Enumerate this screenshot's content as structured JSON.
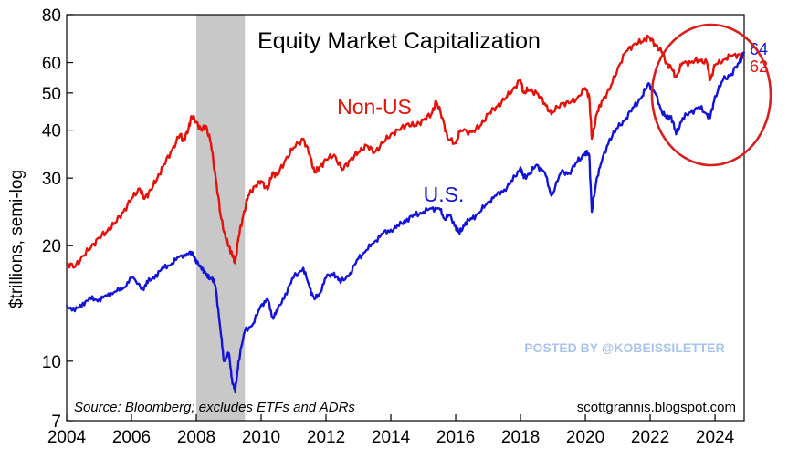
{
  "chart_data": {
    "type": "line",
    "title": "Equity Market Capitalization",
    "ylabel": "$trillions, semi-log",
    "xlabel": "",
    "y_scale": "log",
    "ylim": [
      7,
      80
    ],
    "xlim": [
      2004,
      2024.9
    ],
    "y_ticks": [
      7,
      10,
      20,
      30,
      40,
      50,
      60,
      80
    ],
    "y_tick_labels": [
      "7",
      "10",
      "20",
      "30",
      "40",
      "50",
      "60",
      "80"
    ],
    "x_ticks": [
      2004,
      2006,
      2008,
      2010,
      2012,
      2014,
      2016,
      2018,
      2020,
      2022,
      2024
    ],
    "x_tick_labels": [
      "2004",
      "2006",
      "2008",
      "2010",
      "2012",
      "2014",
      "2016",
      "2018",
      "2020",
      "2022",
      "2024"
    ],
    "grid": false,
    "shaded_periods": [
      {
        "start": 2008.0,
        "end": 2009.5
      }
    ],
    "series": [
      {
        "name": "Non-US",
        "color": "#e3120b",
        "end_label": "62",
        "x": [
          2004.0,
          2004.25,
          2004.5,
          2004.75,
          2005.0,
          2005.25,
          2005.5,
          2005.75,
          2006.0,
          2006.25,
          2006.4,
          2006.6,
          2006.8,
          2007.0,
          2007.25,
          2007.5,
          2007.6,
          2007.75,
          2007.85,
          2008.0,
          2008.15,
          2008.3,
          2008.45,
          2008.6,
          2008.75,
          2008.9,
          2009.0,
          2009.1,
          2009.2,
          2009.3,
          2009.45,
          2009.6,
          2009.8,
          2010.0,
          2010.2,
          2010.35,
          2010.5,
          2010.75,
          2011.0,
          2011.3,
          2011.5,
          2011.65,
          2011.8,
          2012.0,
          2012.25,
          2012.5,
          2012.75,
          2013.0,
          2013.25,
          2013.5,
          2013.75,
          2014.0,
          2014.25,
          2014.5,
          2014.75,
          2015.0,
          2015.25,
          2015.4,
          2015.6,
          2015.75,
          2016.0,
          2016.15,
          2016.5,
          2016.75,
          2017.0,
          2017.25,
          2017.5,
          2017.75,
          2018.0,
          2018.1,
          2018.25,
          2018.5,
          2018.75,
          2018.95,
          2019.25,
          2019.5,
          2019.75,
          2020.0,
          2020.12,
          2020.2,
          2020.35,
          2020.5,
          2020.75,
          2021.0,
          2021.25,
          2021.5,
          2021.75,
          2021.95,
          2022.15,
          2022.35,
          2022.5,
          2022.65,
          2022.8,
          2023.0,
          2023.25,
          2023.5,
          2023.75,
          2023.85,
          2024.0,
          2024.25,
          2024.5,
          2024.75,
          2024.9
        ],
        "values": [
          18.0,
          17.6,
          18.8,
          19.8,
          21.0,
          21.8,
          23.0,
          24.5,
          26.5,
          28.2,
          26.5,
          28.0,
          30.0,
          32.5,
          35.5,
          39.0,
          37.5,
          40.0,
          43.5,
          42.0,
          40.0,
          41.0,
          37.0,
          30.0,
          24.0,
          21.0,
          20.0,
          19.0,
          18.0,
          21.0,
          24.0,
          27.0,
          28.5,
          29.5,
          28.0,
          31.0,
          30.5,
          33.5,
          36.0,
          38.0,
          34.5,
          31.0,
          32.0,
          33.5,
          34.5,
          31.5,
          33.5,
          35.0,
          36.5,
          35.0,
          37.0,
          39.0,
          40.0,
          41.5,
          41.0,
          42.5,
          44.0,
          47.5,
          43.0,
          38.0,
          37.0,
          40.0,
          39.5,
          41.0,
          44.0,
          46.0,
          48.0,
          51.0,
          54.0,
          50.0,
          51.0,
          50.0,
          47.0,
          44.0,
          47.0,
          47.0,
          48.5,
          51.5,
          49.0,
          38.0,
          44.0,
          47.5,
          51.0,
          58.0,
          64.0,
          67.0,
          68.0,
          70.0,
          67.0,
          64.0,
          60.0,
          58.0,
          55.0,
          60.0,
          60.0,
          61.0,
          60.0,
          54.0,
          59.0,
          61.0,
          62.5,
          63.0,
          62.0
        ]
      },
      {
        "name": "U.S.",
        "color": "#1414d6",
        "end_label": "64",
        "x": [
          2004.0,
          2004.25,
          2004.5,
          2004.75,
          2005.0,
          2005.25,
          2005.5,
          2005.75,
          2006.0,
          2006.35,
          2006.5,
          2006.75,
          2007.0,
          2007.25,
          2007.5,
          2007.75,
          2007.9,
          2008.0,
          2008.2,
          2008.35,
          2008.5,
          2008.6,
          2008.75,
          2008.85,
          2009.0,
          2009.1,
          2009.2,
          2009.3,
          2009.5,
          2009.75,
          2010.0,
          2010.2,
          2010.35,
          2010.5,
          2010.75,
          2011.0,
          2011.3,
          2011.5,
          2011.65,
          2011.8,
          2012.0,
          2012.25,
          2012.45,
          2012.75,
          2013.0,
          2013.25,
          2013.5,
          2013.75,
          2014.0,
          2014.25,
          2014.5,
          2014.75,
          2015.0,
          2015.25,
          2015.5,
          2015.65,
          2015.8,
          2016.0,
          2016.12,
          2016.3,
          2016.5,
          2016.75,
          2017.0,
          2017.25,
          2017.5,
          2017.75,
          2018.0,
          2018.1,
          2018.3,
          2018.5,
          2018.75,
          2018.95,
          2019.25,
          2019.5,
          2019.75,
          2020.0,
          2020.12,
          2020.2,
          2020.35,
          2020.5,
          2020.75,
          2021.0,
          2021.25,
          2021.5,
          2021.75,
          2021.95,
          2022.15,
          2022.35,
          2022.5,
          2022.65,
          2022.8,
          2023.0,
          2023.25,
          2023.5,
          2023.75,
          2023.85,
          2024.0,
          2024.25,
          2024.5,
          2024.75,
          2024.9
        ],
        "values": [
          14.0,
          13.5,
          14.2,
          14.5,
          14.5,
          14.8,
          15.2,
          15.5,
          16.5,
          15.5,
          16.0,
          16.8,
          17.5,
          18.0,
          18.8,
          19.0,
          19.2,
          18.0,
          17.5,
          16.5,
          16.5,
          15.5,
          12.0,
          10.0,
          10.5,
          9.0,
          8.3,
          10.0,
          12.0,
          12.5,
          14.0,
          14.5,
          13.0,
          13.5,
          15.0,
          16.5,
          17.5,
          15.5,
          14.5,
          15.0,
          16.5,
          17.0,
          16.0,
          17.0,
          18.5,
          19.5,
          20.5,
          21.5,
          22.0,
          22.5,
          23.5,
          24.0,
          24.5,
          25.0,
          25.0,
          23.5,
          24.0,
          22.5,
          21.5,
          23.0,
          23.5,
          24.5,
          26.0,
          27.0,
          28.0,
          29.5,
          32.0,
          30.0,
          31.0,
          32.5,
          31.0,
          27.0,
          31.0,
          31.0,
          33.0,
          35.0,
          34.5,
          24.5,
          30.0,
          33.0,
          38.0,
          40.5,
          43.0,
          46.0,
          49.0,
          53.0,
          50.0,
          45.0,
          43.0,
          43.5,
          39.0,
          43.0,
          44.5,
          46.0,
          44.0,
          43.0,
          49.0,
          54.0,
          56.0,
          60.0,
          64.0
        ]
      }
    ],
    "series_labels": {
      "non_us": "Non-US",
      "us": "U.S."
    },
    "annotations": {
      "source": "Source: Bloomberg; excludes ETFs and ADRs",
      "site": "scottgrannis.blogspot.com",
      "watermark": "POSTED BY @KOBEISSILETTER",
      "highlight": "red ellipse around recent values"
    }
  }
}
